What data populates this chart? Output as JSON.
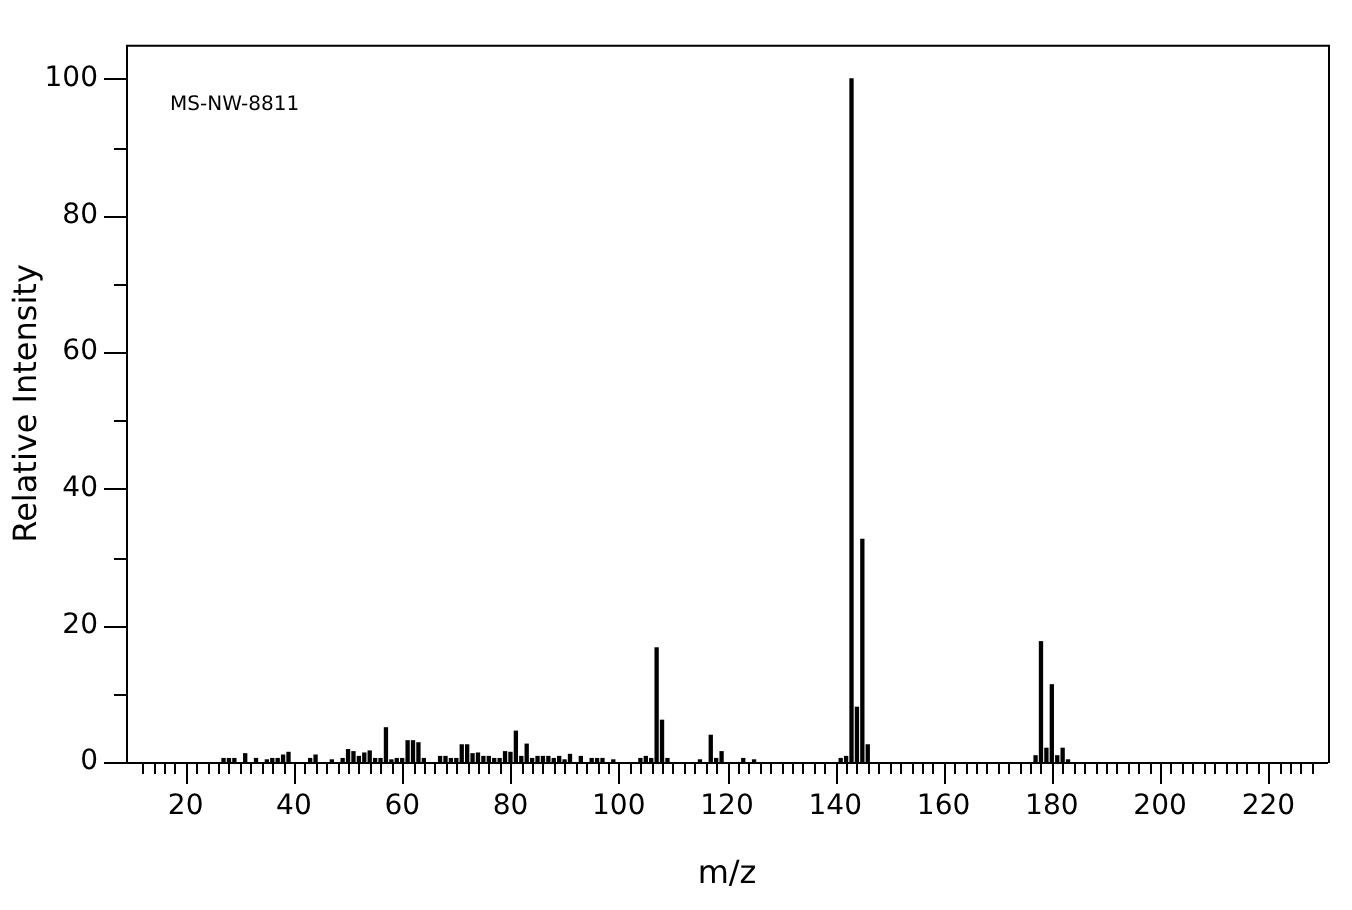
{
  "chart_data": {
    "type": "bar",
    "xlabel": "m/z",
    "ylabel": "Relative Intensity",
    "annotations": [
      "MS-NW-8811"
    ],
    "color": "#000000",
    "grid": false,
    "legend": false,
    "x": [
      27,
      28,
      29,
      31,
      33,
      35,
      36,
      37,
      38,
      39,
      43,
      44,
      47,
      49,
      50,
      51,
      52,
      53,
      54,
      55,
      56,
      57,
      58,
      59,
      60,
      61,
      62,
      63,
      64,
      67,
      68,
      69,
      70,
      71,
      72,
      73,
      74,
      75,
      76,
      77,
      78,
      79,
      80,
      81,
      82,
      83,
      84,
      85,
      86,
      87,
      88,
      89,
      90,
      91,
      93,
      95,
      96,
      97,
      99,
      104,
      105,
      106,
      107,
      108,
      109,
      115,
      117,
      118,
      119,
      123,
      125,
      141,
      142,
      143,
      144,
      145,
      146,
      177,
      178,
      179,
      180,
      181,
      182,
      183
    ],
    "values": [
      0.5,
      0.5,
      0.5,
      1.2,
      0.5,
      0.3,
      0.5,
      0.5,
      1,
      1.4,
      0.5,
      1,
      0.3,
      0.5,
      1.8,
      1.5,
      0.8,
      1.3,
      1.6,
      0.5,
      0.5,
      5,
      0.3,
      0.5,
      0.5,
      3.1,
      3.1,
      2.8,
      0.5,
      0.8,
      0.8,
      0.5,
      0.5,
      2.5,
      2.5,
      1.2,
      1.3,
      0.8,
      0.8,
      0.5,
      0.5,
      1.5,
      1.4,
      4.5,
      0.8,
      2.6,
      0.5,
      0.8,
      0.8,
      0.8,
      0.5,
      0.8,
      0.3,
      1.1,
      0.8,
      0.5,
      0.5,
      0.5,
      0.3,
      0.5,
      0.8,
      0.5,
      16.7,
      6.1,
      0.5,
      0.3,
      3.9,
      0.5,
      1.5,
      0.5,
      0.3,
      0.5,
      0.8,
      100,
      8,
      32.6,
      2.5,
      0.9,
      17.6,
      2,
      11.3,
      0.9,
      2,
      0.3
    ],
    "xlim": [
      10,
      230
    ],
    "xticks": [
      {
        "value": 12,
        "label": null
      },
      {
        "value": 14,
        "label": null
      },
      {
        "value": 16,
        "label": null
      },
      {
        "value": 18,
        "label": null
      },
      20,
      {
        "value": 22,
        "label": null
      },
      {
        "value": 24,
        "label": null
      },
      {
        "value": 26,
        "label": null
      },
      {
        "value": 28,
        "label": null
      },
      {
        "value": 30,
        "label": null
      },
      {
        "value": 32,
        "label": null
      },
      {
        "value": 34,
        "label": null
      },
      {
        "value": 36,
        "label": null
      },
      {
        "value": 38,
        "label": null
      },
      40,
      {
        "value": 42,
        "label": null
      },
      {
        "value": 44,
        "label": null
      },
      {
        "value": 46,
        "label": null
      },
      {
        "value": 48,
        "label": null
      },
      {
        "value": 50,
        "label": null
      },
      {
        "value": 52,
        "label": null
      },
      {
        "value": 54,
        "label": null
      },
      {
        "value": 56,
        "label": null
      },
      {
        "value": 58,
        "label": null
      },
      60,
      {
        "value": 62,
        "label": null
      },
      {
        "value": 64,
        "label": null
      },
      {
        "value": 66,
        "label": null
      },
      {
        "value": 68,
        "label": null
      },
      {
        "value": 70,
        "label": null
      },
      {
        "value": 72,
        "label": null
      },
      {
        "value": 74,
        "label": null
      },
      {
        "value": 76,
        "label": null
      },
      {
        "value": 78,
        "label": null
      },
      80,
      {
        "value": 82,
        "label": null
      },
      {
        "value": 84,
        "label": null
      },
      {
        "value": 86,
        "label": null
      },
      {
        "value": 88,
        "label": null
      },
      {
        "value": 90,
        "label": null
      },
      {
        "value": 92,
        "label": null
      },
      {
        "value": 94,
        "label": null
      },
      {
        "value": 96,
        "label": null
      },
      {
        "value": 98,
        "label": null
      },
      100,
      {
        "value": 102,
        "label": null
      },
      {
        "value": 104,
        "label": null
      },
      {
        "value": 106,
        "label": null
      },
      {
        "value": 108,
        "label": null
      },
      {
        "value": 110,
        "label": null
      },
      {
        "value": 112,
        "label": null
      },
      {
        "value": 114,
        "label": null
      },
      {
        "value": 116,
        "label": null
      },
      {
        "value": 118,
        "label": null
      },
      120,
      {
        "value": 122,
        "label": null
      },
      {
        "value": 124,
        "label": null
      },
      {
        "value": 126,
        "label": null
      },
      {
        "value": 128,
        "label": null
      },
      {
        "value": 130,
        "label": null
      },
      {
        "value": 132,
        "label": null
      },
      {
        "value": 134,
        "label": null
      },
      {
        "value": 136,
        "label": null
      },
      {
        "value": 138,
        "label": null
      },
      140,
      {
        "value": 142,
        "label": null
      },
      {
        "value": 144,
        "label": null
      },
      {
        "value": 146,
        "label": null
      },
      {
        "value": 148,
        "label": null
      },
      {
        "value": 150,
        "label": null
      },
      {
        "value": 152,
        "label": null
      },
      {
        "value": 154,
        "label": null
      },
      {
        "value": 156,
        "label": null
      },
      {
        "value": 158,
        "label": null
      },
      160,
      {
        "value": 162,
        "label": null
      },
      {
        "value": 164,
        "label": null
      },
      {
        "value": 166,
        "label": null
      },
      {
        "value": 168,
        "label": null
      },
      {
        "value": 170,
        "label": null
      },
      {
        "value": 172,
        "label": null
      },
      {
        "value": 174,
        "label": null
      },
      {
        "value": 176,
        "label": null
      },
      {
        "value": 178,
        "label": null
      },
      180,
      {
        "value": 182,
        "label": null
      },
      {
        "value": 184,
        "label": null
      },
      {
        "value": 186,
        "label": null
      },
      {
        "value": 188,
        "label": null
      },
      {
        "value": 190,
        "label": null
      },
      {
        "value": 192,
        "label": null
      },
      {
        "value": 194,
        "label": null
      },
      {
        "value": 196,
        "label": null
      },
      {
        "value": 198,
        "label": null
      },
      200,
      {
        "value": 202,
        "label": null
      },
      {
        "value": 204,
        "label": null
      },
      {
        "value": 206,
        "label": null
      },
      {
        "value": 208,
        "label": null
      },
      {
        "value": 210,
        "label": null
      },
      {
        "value": 212,
        "label": null
      },
      {
        "value": 214,
        "label": null
      },
      {
        "value": 216,
        "label": null
      },
      {
        "value": 218,
        "label": null
      },
      220,
      {
        "value": 222,
        "label": null
      },
      {
        "value": 224,
        "label": null
      },
      {
        "value": 226,
        "label": null
      },
      {
        "value": 228,
        "label": null
      }
    ],
    "ylim": [
      0,
      105
    ],
    "yticks": [
      0,
      {
        "value": 10,
        "label": null
      },
      20,
      {
        "value": 30,
        "label": null
      },
      40,
      {
        "value": 50,
        "label": null
      },
      60,
      {
        "value": 70,
        "label": null
      },
      80,
      {
        "value": 90,
        "label": null
      },
      100
    ]
  }
}
